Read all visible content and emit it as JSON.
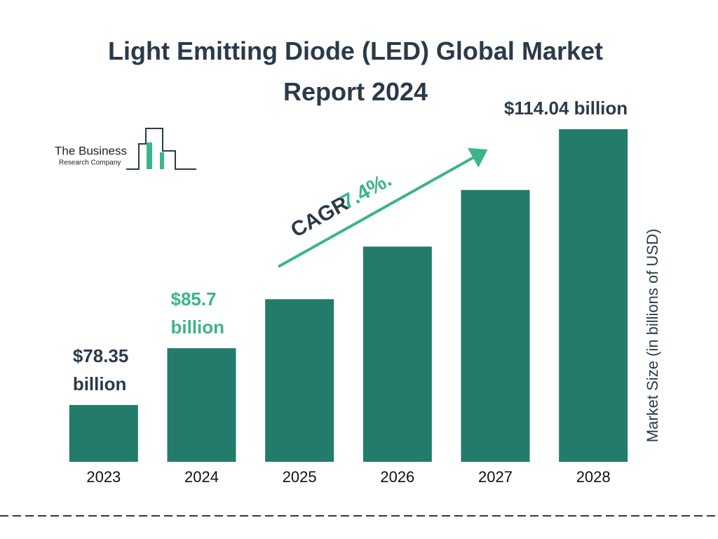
{
  "chart_data": {
    "type": "bar",
    "title": "Light Emitting Diode (LED) Global Market Report 2024",
    "categories": [
      "2023",
      "2024",
      "2025",
      "2026",
      "2027",
      "2028"
    ],
    "values": [
      78.35,
      85.7,
      92.04,
      98.85,
      106.17,
      114.04
    ],
    "value_labels": [
      "$78.35 billion",
      "$85.7 billion",
      null,
      null,
      null,
      "$114.04 billion"
    ],
    "value_label_colors": [
      "#2b3a4a",
      "#3bb58a",
      null,
      null,
      null,
      "#2b3a4a"
    ],
    "color": "#227b6b",
    "ylim": [
      71,
      116
    ],
    "ylabel": "Market Size (in billions of USD)",
    "cagr_label": "CAGR",
    "cagr_value": "7.4%.",
    "logo_text": [
      "The Business",
      "Research Company"
    ]
  }
}
